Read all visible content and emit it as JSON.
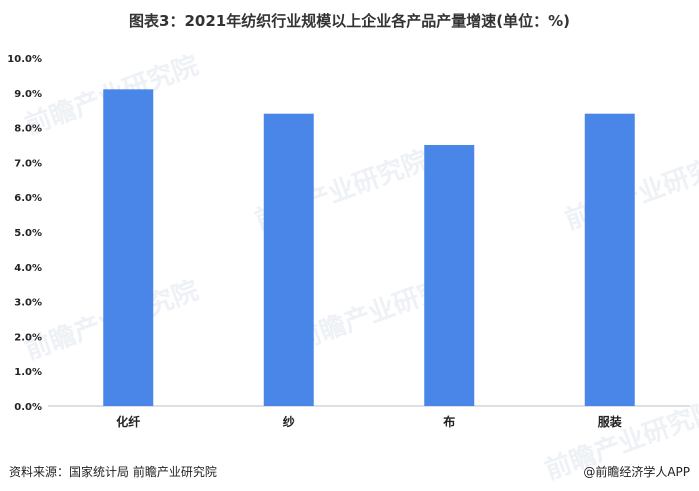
{
  "title": "图表3：2021年纺织行业规模以上企业各产品产量增速(单位：%)",
  "source": "资料来源：国家统计局 前瞻产业研究院",
  "brand": "@前瞻经济学人APP",
  "watermark": "前瞻产业研究院",
  "colors": {
    "bar": "#4a86e8",
    "axis": "#bfbfbf"
  },
  "chart_data": {
    "type": "bar",
    "categories": [
      "化纤",
      "纱",
      "布",
      "服装"
    ],
    "values": [
      9.1,
      8.4,
      7.5,
      8.4
    ],
    "ylim": [
      0,
      10
    ],
    "yticks": [
      "0.0%",
      "1.0%",
      "2.0%",
      "3.0%",
      "4.0%",
      "5.0%",
      "6.0%",
      "7.0%",
      "8.0%",
      "9.0%",
      "10.0%"
    ],
    "grid": false,
    "legend": "none"
  }
}
